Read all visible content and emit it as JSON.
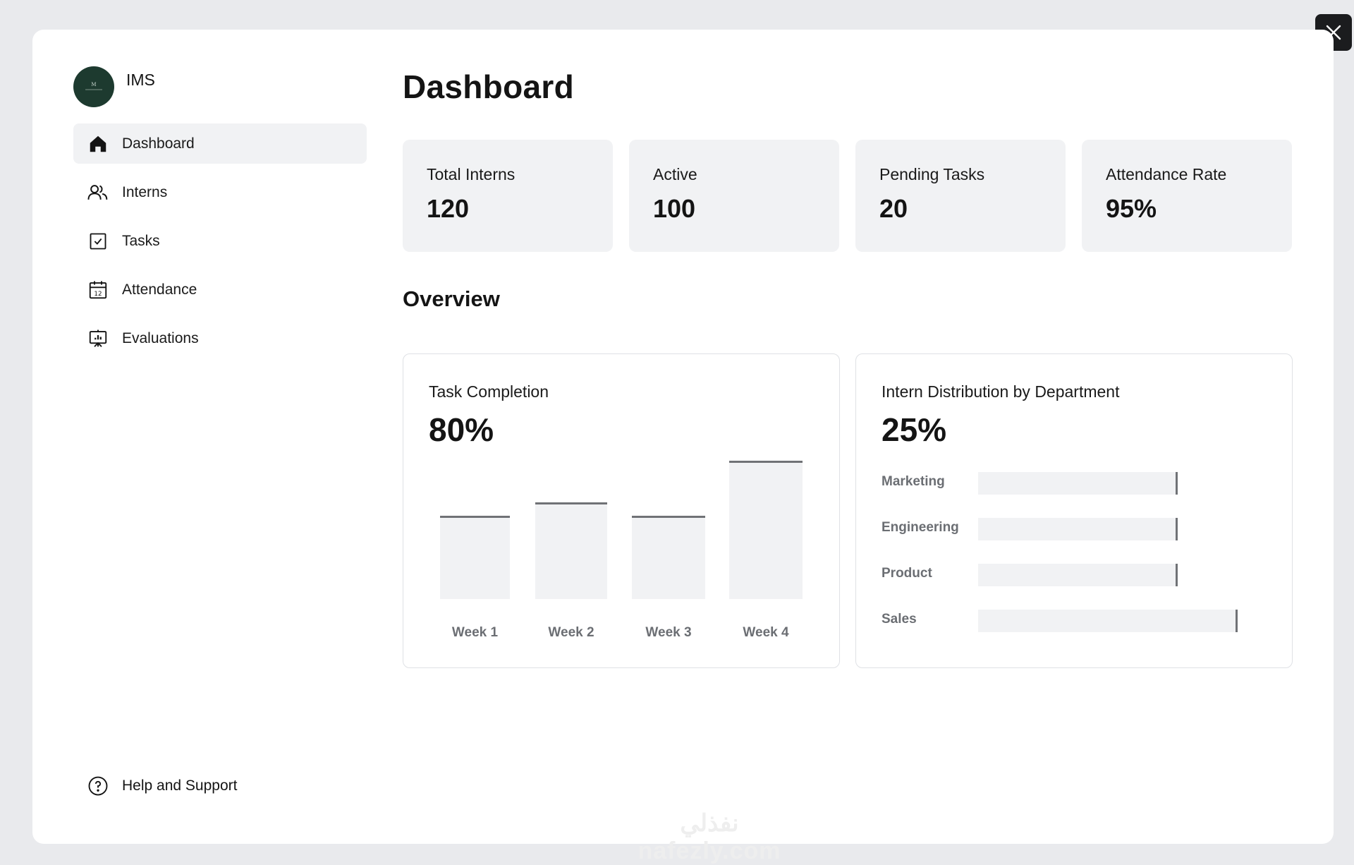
{
  "app": {
    "name": "IMS"
  },
  "sidebar": {
    "items": [
      {
        "label": "Dashboard",
        "icon": "home-icon",
        "active": true
      },
      {
        "label": "Interns",
        "icon": "users-icon",
        "active": false
      },
      {
        "label": "Tasks",
        "icon": "checkbox-icon",
        "active": false
      },
      {
        "label": "Attendance",
        "icon": "calendar-icon",
        "active": false
      },
      {
        "label": "Evaluations",
        "icon": "presentation-chart-icon",
        "active": false
      }
    ],
    "help_label": "Help and Support"
  },
  "main": {
    "title": "Dashboard",
    "stats": [
      {
        "label": "Total Interns",
        "value": "120"
      },
      {
        "label": "Active",
        "value": "100"
      },
      {
        "label": "Pending Tasks",
        "value": "20"
      },
      {
        "label": "Attendance Rate",
        "value": "95%"
      }
    ],
    "overview_title": "Overview"
  },
  "chart_data": [
    {
      "type": "bar",
      "title": "Task Completion",
      "headline": "80%",
      "categories": [
        "Week 1",
        "Week 2",
        "Week 3",
        "Week 4"
      ],
      "values": [
        60,
        70,
        60,
        100
      ],
      "ylim": [
        0,
        100
      ]
    },
    {
      "type": "bar",
      "orientation": "horizontal",
      "title": "Intern Distribution by Department",
      "headline": "25%",
      "categories": [
        "Marketing",
        "Engineering",
        "Product",
        "Sales"
      ],
      "values": [
        77,
        77,
        77,
        100
      ],
      "xlim": [
        0,
        100
      ]
    }
  ],
  "watermark": "نفذلي nafezly.com",
  "colors": {
    "avatar": "#1d3a2f",
    "card_bg": "#f1f2f4",
    "bar_edge": "#707276"
  }
}
